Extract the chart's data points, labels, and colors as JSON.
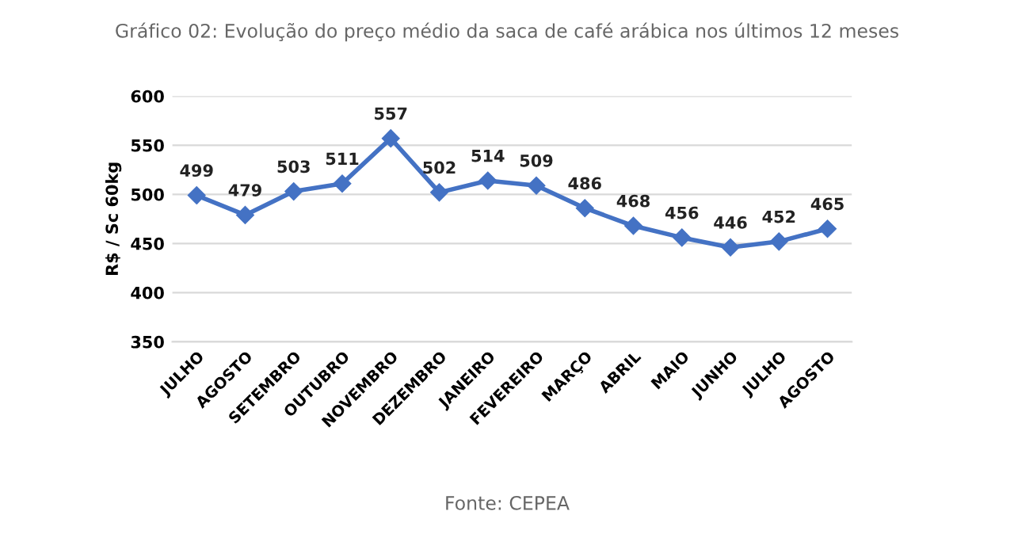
{
  "chart_data": {
    "type": "line",
    "title": "Gráfico 02: Evolução do preço médio da saca de café arábica nos últimos 12 meses",
    "ylabel": "R$ / Sc 60kg",
    "categories": [
      "JULHO",
      "AGOSTO",
      "SETEMBRO",
      "OUTUBRO",
      "NOVEMBRO",
      "DEZEMBRO",
      "JANEIRO",
      "FEVEREIRO",
      "MARÇO",
      "ABRIL",
      "MAIO",
      "JUNHO",
      "JULHO",
      "AGOSTO"
    ],
    "series": [
      {
        "color": "#4472c4",
        "values": [
          499,
          479,
          503,
          511,
          557,
          502,
          514,
          509,
          486,
          468,
          456,
          446,
          452,
          465
        ]
      }
    ],
    "ylim": [
      350,
      600
    ],
    "yticks": [
      350,
      400,
      450,
      500,
      550,
      600
    ],
    "grid": "y",
    "marker": "diamond",
    "line_style": "solid",
    "data_labels": true,
    "legend": false,
    "annotations": [
      "Fonte: CEPEA"
    ]
  }
}
